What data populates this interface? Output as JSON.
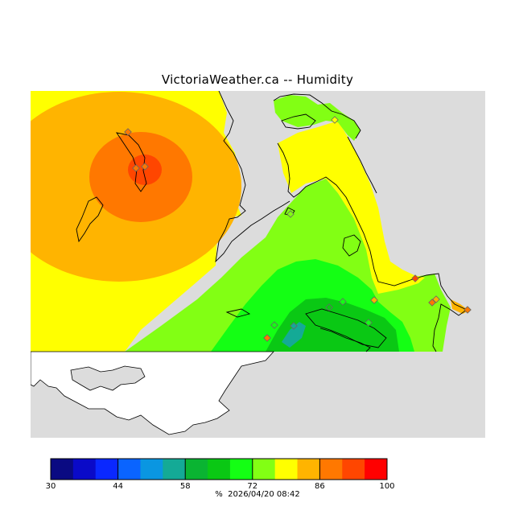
{
  "title": "VictoriaWeather.ca -- Humidity",
  "colorbar": {
    "unit": "%",
    "timestamp": "2026/04/20 08:42",
    "min": 30,
    "max": 100,
    "tick_labels": [
      "30",
      "44",
      "58",
      "72",
      "86",
      "100"
    ],
    "colors": [
      "#0a0a82",
      "#0a0ac8",
      "#0a28ff",
      "#0a64ff",
      "#0a96e1",
      "#14aa96",
      "#0ab432",
      "#0ac814",
      "#14ff14",
      "#82ff14",
      "#ffff00",
      "#ffb400",
      "#ff7800",
      "#ff4600",
      "#ff0000"
    ]
  },
  "map": {
    "background_color": "#dcdcdc",
    "land_outline_color": "#000000",
    "zones": [
      {
        "name": "humidity-yellow",
        "color": "#ffff00"
      },
      {
        "name": "humidity-orange",
        "color": "#ffb400"
      },
      {
        "name": "humidity-dark-orange",
        "color": "#ff7800"
      },
      {
        "name": "humidity-red",
        "color": "#ff4600"
      },
      {
        "name": "humidity-light-green",
        "color": "#82ff14"
      },
      {
        "name": "humidity-green",
        "color": "#14ff14"
      },
      {
        "name": "humidity-dark-green",
        "color": "#0ac814"
      },
      {
        "name": "humidity-teal",
        "color": "#14aa96"
      }
    ]
  }
}
